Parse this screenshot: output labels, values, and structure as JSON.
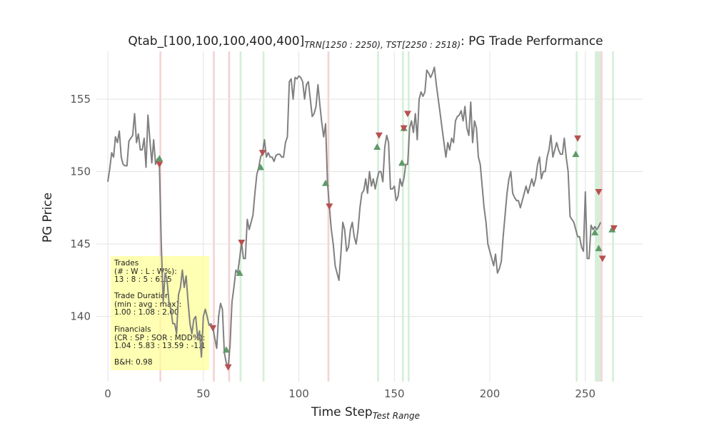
{
  "chart_data": {
    "type": "line",
    "title": "Qtab_[100,100,100,400,400]",
    "title_sub": "TRN[1250 : 2250), TST[2250 : 2518)",
    "title_suffix": ": PG Trade Performance",
    "xlabel": "Time Step",
    "xlabel_sub": "Test Range",
    "ylabel": "PG Price",
    "xlim": [
      -6,
      280
    ],
    "ylim": [
      135.5,
      158.3
    ],
    "xticks": [
      0,
      50,
      100,
      150,
      200,
      250
    ],
    "yticks": [
      140,
      145,
      150,
      155
    ],
    "grid": true,
    "price": [
      149.3,
      150.2,
      151.3,
      151.0,
      152.4,
      152.0,
      152.8,
      151.0,
      150.5,
      150.4,
      150.4,
      152.1,
      152.3,
      152.5,
      154.0,
      152.0,
      152.6,
      151.5,
      151.5,
      152.3,
      150.3,
      153.9,
      152.2,
      150.6,
      152.2,
      150.5,
      150.9,
      150.4,
      145.0,
      141.0,
      143.0,
      142.5,
      141.0,
      140.5,
      139.5,
      139.5,
      138.8,
      141.5,
      142.0,
      143.2,
      142.0,
      142.8,
      141.0,
      139.5,
      138.8,
      139.8,
      140.0,
      138.5,
      139.0,
      137.2,
      140.0,
      140.5,
      140.0,
      139.4,
      139.5,
      139.2,
      138.5,
      137.8,
      140.0,
      140.9,
      140.5,
      137.5,
      136.8,
      136.5,
      138.0,
      141.0,
      142.0,
      143.2,
      143.0,
      144.0,
      145.1,
      144.0,
      144.0,
      146.7,
      146.0,
      146.5,
      147.0,
      148.5,
      149.8,
      150.3,
      151.0,
      151.3,
      152.2,
      151.0,
      151.3,
      151.0,
      151.0,
      150.7,
      151.1,
      151.2,
      151.2,
      151.0,
      151.0,
      152.0,
      152.4,
      156.2,
      156.4,
      155.0,
      156.5,
      156.4,
      156.6,
      156.5,
      156.2,
      155.0,
      156.0,
      156.2,
      155.0,
      153.8,
      154.0,
      154.5,
      156.0,
      154.6,
      153.4,
      152.4,
      153.3,
      149.2,
      147.6,
      146.0,
      145.0,
      143.5,
      143.0,
      142.5,
      144.3,
      146.5,
      146.0,
      144.5,
      144.8,
      146.0,
      146.5,
      145.5,
      145.0,
      146.0,
      147.5,
      148.5,
      148.7,
      149.5,
      148.5,
      150.0,
      149.0,
      149.5,
      148.8,
      149.5,
      150.0,
      150.0,
      149.3,
      151.7,
      152.5,
      152.0,
      148.8,
      148.8,
      149.0,
      148.0,
      148.3,
      149.5,
      149.0,
      149.5,
      150.5,
      150.5,
      153.0,
      153.5,
      152.7,
      154.0,
      152.2,
      155.0,
      155.5,
      155.2,
      155.5,
      157.0,
      156.8,
      156.5,
      156.8,
      157.2,
      156.0,
      155.0,
      154.0,
      153.0,
      152.0,
      151.0,
      152.0,
      151.5,
      152.3,
      152.0,
      153.5,
      153.8,
      153.9,
      154.2,
      153.5,
      154.5,
      153.0,
      152.5,
      154.8,
      152.0,
      153.5,
      153.0,
      151.0,
      150.5,
      149.0,
      147.5,
      146.5,
      145.0,
      144.5,
      144.0,
      143.5,
      144.3,
      143.0,
      143.3,
      143.8,
      145.5,
      147.0,
      148.5,
      149.5,
      150.0,
      148.5,
      148.2,
      148.0,
      148.0,
      147.5,
      148.0,
      148.5,
      149.0,
      148.5,
      149.0,
      149.5,
      149.0,
      149.5,
      150.5,
      151.0,
      149.5,
      150.0,
      150.0,
      151.0,
      151.5,
      152.5,
      151.0,
      151.5,
      152.0,
      151.5,
      151.2,
      151.2,
      152.3,
      151.0,
      150.0,
      146.9,
      146.7,
      146.5,
      146.0,
      145.5,
      145.5,
      144.8,
      144.5,
      148.6,
      144.0,
      144.0,
      146.3,
      146.0,
      146.2,
      146.0,
      146.2,
      146.5
    ],
    "buys": [
      [
        27,
        150.9
      ],
      [
        62,
        137.7
      ],
      [
        69,
        143.0
      ],
      [
        80,
        150.3
      ],
      [
        114,
        149.2
      ],
      [
        141,
        151.7
      ],
      [
        154,
        150.6
      ],
      [
        155,
        153.0
      ],
      [
        245,
        151.2
      ],
      [
        255,
        145.8
      ],
      [
        257,
        144.7
      ],
      [
        264,
        146.0
      ]
    ],
    "sells": [
      [
        27,
        150.5
      ],
      [
        55,
        139.2
      ],
      [
        63,
        136.5
      ],
      [
        70,
        145.1
      ],
      [
        81,
        151.3
      ],
      [
        116,
        147.6
      ],
      [
        142,
        152.5
      ],
      [
        155,
        153.0
      ],
      [
        157,
        154.0
      ],
      [
        246,
        152.3
      ],
      [
        257,
        148.6
      ],
      [
        259,
        144.0
      ],
      [
        265,
        146.1
      ]
    ],
    "win_bands": [
      [
        69,
        70
      ],
      [
        81,
        82
      ],
      [
        141,
        142
      ],
      [
        154,
        155
      ],
      [
        157,
        158
      ],
      [
        245,
        246
      ],
      [
        255,
        258
      ],
      [
        264,
        265
      ]
    ],
    "loss_bands": [
      [
        27,
        28
      ],
      [
        55,
        56
      ],
      [
        63,
        64
      ],
      [
        115,
        116
      ],
      [
        258,
        259
      ]
    ],
    "colors": {
      "price": "#808080",
      "buy": "#5f9a68",
      "sell": "#b85050",
      "win_band": "#d6efd9",
      "loss_band": "#f5d4d4",
      "grid": "#e3e3e3",
      "info_box": "#ffff99"
    },
    "stats": {
      "trades_head": "Trades",
      "trades_fmt": "(# : W : L : W%):",
      "trades_val": "13 : 8 : 5 : 61.5",
      "dur_head": "Trade Duration",
      "dur_fmt": "(min : avg : max):",
      "dur_val": "1.00 : 1.08 : 2.00",
      "fin_head": "Financials",
      "fin_fmt": "(CR : SP : SOR : MDD%):",
      "fin_val": "1.04 : 5.83 : 13.59 : -1.1",
      "bh": "B&H: 0.98"
    }
  }
}
